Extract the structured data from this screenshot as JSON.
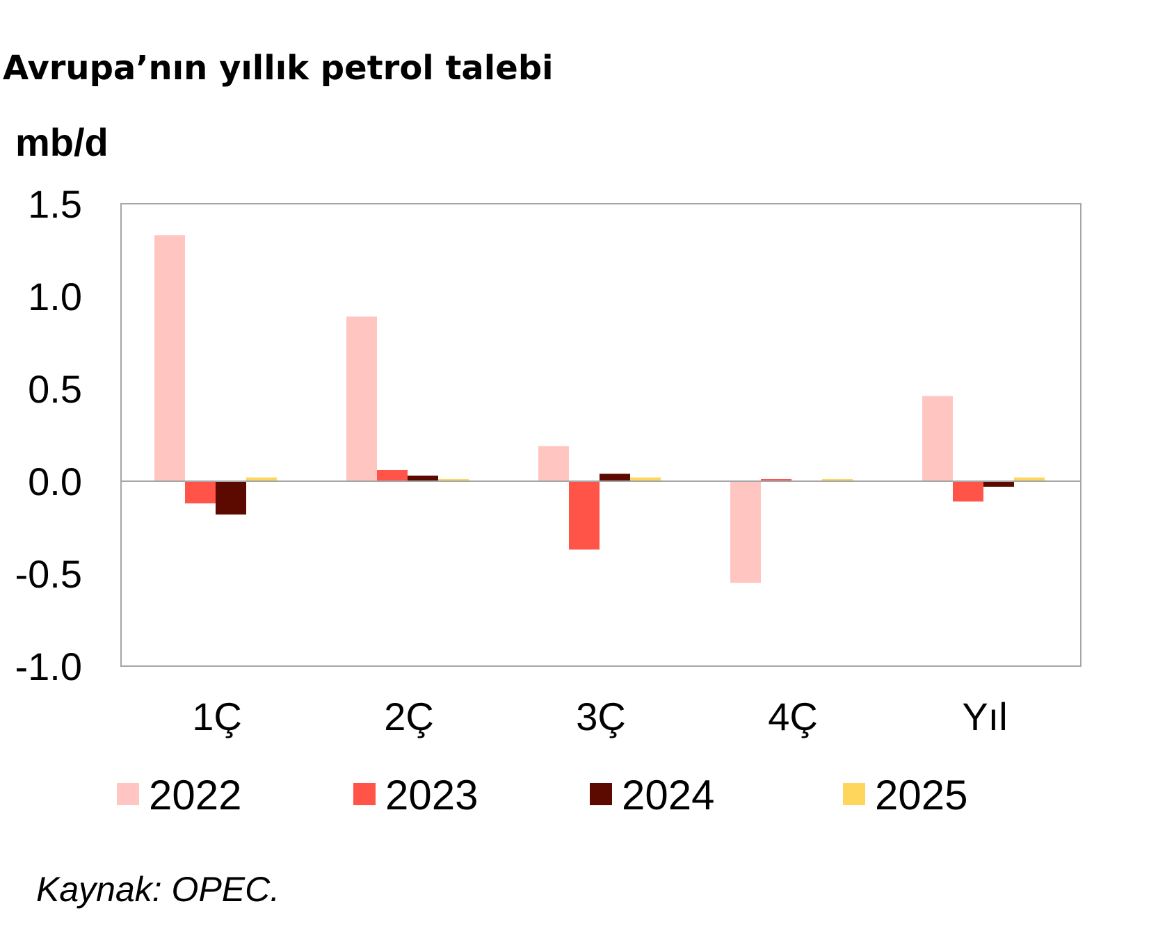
{
  "title": "Avrupa’nın yıllık petrol talebi",
  "unit_label": "mb/d",
  "source": "Kaynak: OPEC.",
  "chart_data": {
    "type": "bar",
    "categories": [
      "1Ç",
      "2Ç",
      "3Ç",
      "4Ç",
      "Yıl"
    ],
    "series": [
      {
        "name": "2022",
        "color": "#FFC6C1",
        "values": [
          1.33,
          0.89,
          0.19,
          -0.55,
          0.46
        ]
      },
      {
        "name": "2023",
        "color": "#FF5447",
        "values": [
          -0.12,
          0.06,
          -0.37,
          0.01,
          -0.11
        ]
      },
      {
        "name": "2024",
        "color": "#5C0A00",
        "values": [
          -0.18,
          0.03,
          0.04,
          0.0,
          -0.03
        ]
      },
      {
        "name": "2025",
        "color": "#FFD65C",
        "values": [
          0.02,
          0.01,
          0.02,
          0.01,
          0.02
        ]
      }
    ],
    "ylim": [
      -1.0,
      1.5
    ],
    "yticks": [
      "1.5",
      "1.0",
      "0.5",
      "0.0",
      "-0.5",
      "-1.0"
    ],
    "ytick_values": [
      1.5,
      1.0,
      0.5,
      0.0,
      -0.5,
      -1.0
    ],
    "legend_position": "bottom",
    "grid": false
  }
}
